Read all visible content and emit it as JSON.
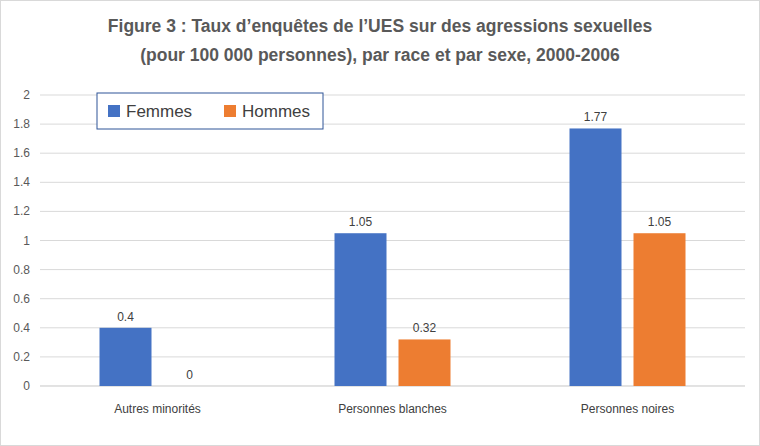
{
  "chart_data": {
    "type": "bar",
    "title": "Figure 3 : Taux d’enquêtes de l’UES sur des agressions sexuelles (pour 100 000 personnes), par race et par sexe, 2000-2006",
    "categories": [
      "Autres minorités",
      "Personnes blanches",
      "Personnes noires"
    ],
    "series": [
      {
        "name": "Femmes",
        "color": "#4472c4",
        "values": [
          0.4,
          1.05,
          1.77
        ]
      },
      {
        "name": "Hommes",
        "color": "#ed7d31",
        "values": [
          0,
          0.32,
          1.05
        ]
      }
    ],
    "ylim": [
      0,
      2
    ],
    "yticks": [
      0,
      0.2,
      0.4,
      0.6,
      0.8,
      1,
      1.2,
      1.4,
      1.6,
      1.8,
      2
    ],
    "grid": true,
    "legend": "top-left",
    "data_labels": true
  }
}
